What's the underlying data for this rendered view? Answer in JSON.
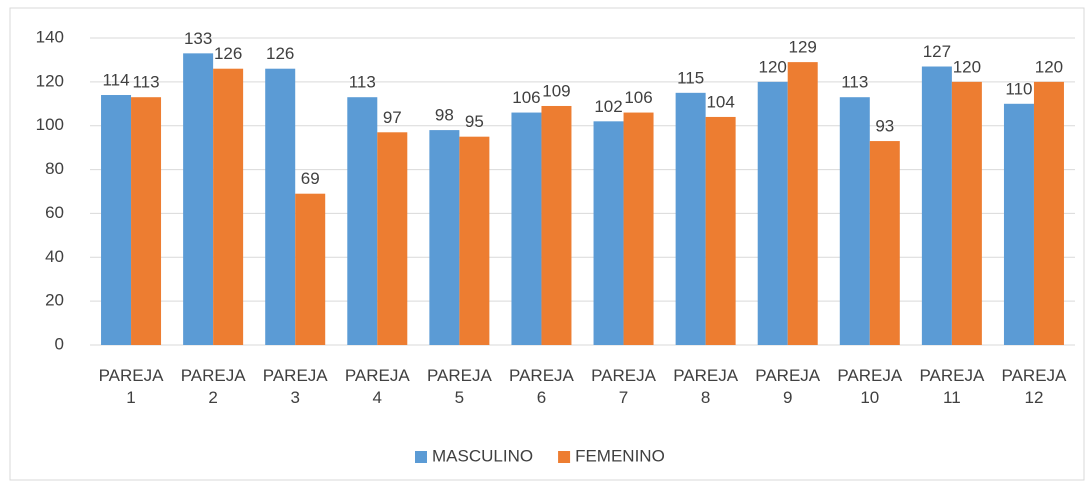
{
  "chart_data": {
    "type": "bar",
    "categories": [
      "PAREJA 1",
      "PAREJA 2",
      "PAREJA 3",
      "PAREJA 4",
      "PAREJA 5",
      "PAREJA 6",
      "PAREJA 7",
      "PAREJA 8",
      "PAREJA 9",
      "PAREJA 10",
      "PAREJA 11",
      "PAREJA 12"
    ],
    "series": [
      {
        "name": "MASCULINO",
        "color": "#5b9bd5",
        "values": [
          114,
          133,
          126,
          113,
          98,
          106,
          102,
          115,
          120,
          113,
          127,
          110
        ]
      },
      {
        "name": "FEMENINO",
        "color": "#ed7d31",
        "values": [
          113,
          126,
          69,
          97,
          95,
          109,
          106,
          104,
          129,
          93,
          120,
          120
        ]
      }
    ],
    "ylim": [
      0,
      140
    ],
    "yticks": [
      0,
      20,
      40,
      60,
      80,
      100,
      120,
      140
    ],
    "grid": true,
    "legend": "bottom"
  }
}
